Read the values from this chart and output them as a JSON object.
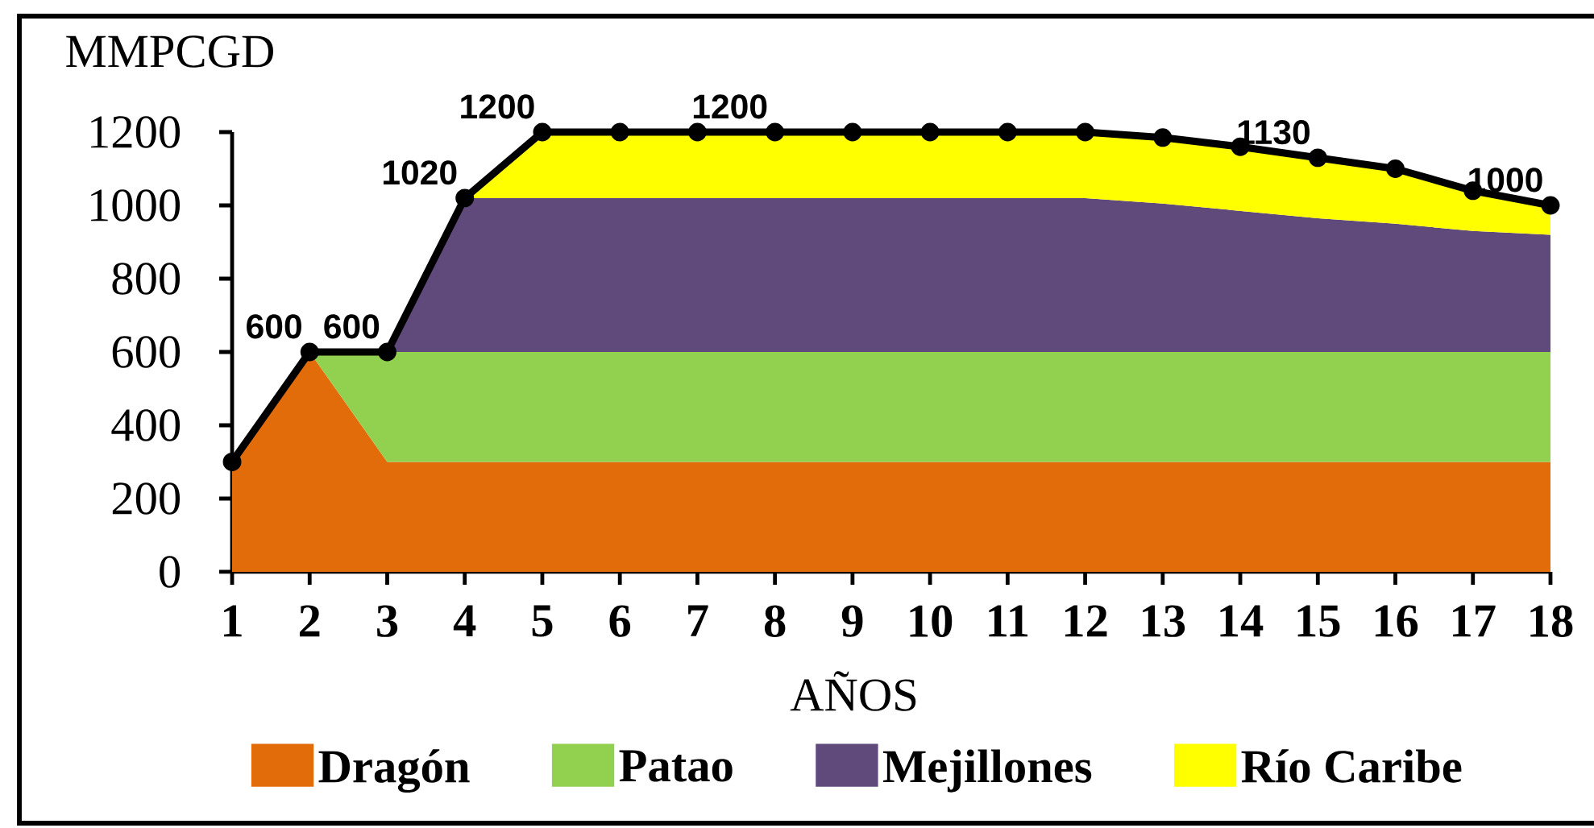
{
  "chart_data": {
    "type": "area",
    "stacked": true,
    "ylabel": "MMPCGD",
    "xlabel": "AÑOS",
    "x": [
      1,
      2,
      3,
      4,
      5,
      6,
      7,
      8,
      9,
      10,
      11,
      12,
      13,
      14,
      15,
      16,
      17,
      18
    ],
    "xlim": [
      1,
      18
    ],
    "xticks": [
      1,
      2,
      3,
      4,
      5,
      6,
      7,
      8,
      9,
      10,
      11,
      12,
      13,
      14,
      15,
      16,
      17,
      18
    ],
    "ylim": [
      0,
      1200
    ],
    "yticks": [
      0,
      200,
      400,
      600,
      800,
      1000,
      1200
    ],
    "legend": "bottom",
    "series": [
      {
        "name": "Dragón",
        "color": "#e36c0a",
        "values": [
          300,
          600,
          300,
          300,
          300,
          300,
          300,
          300,
          300,
          300,
          300,
          300,
          300,
          300,
          300,
          300,
          300,
          300
        ]
      },
      {
        "name": "Patao",
        "color": "#92d050",
        "values": [
          null,
          0,
          300,
          300,
          300,
          300,
          300,
          300,
          300,
          300,
          300,
          300,
          300,
          300,
          300,
          300,
          300,
          300
        ]
      },
      {
        "name": "Mejillones",
        "color": "#604a7b",
        "values": [
          null,
          null,
          0,
          420,
          420,
          420,
          420,
          420,
          420,
          420,
          420,
          420,
          405,
          385,
          365,
          350,
          330,
          320
        ]
      },
      {
        "name": "Río Caribe",
        "color": "#ffff00",
        "values": [
          null,
          null,
          null,
          0,
          180,
          180,
          180,
          180,
          180,
          180,
          180,
          180,
          180,
          175,
          165,
          150,
          110,
          80
        ]
      },
      {
        "type": "line",
        "color": "#000000",
        "marker": "circle",
        "values": [
          300,
          600,
          600,
          1020,
          1200,
          1200,
          1200,
          1200,
          1200,
          1200,
          1200,
          1200,
          1185,
          1160,
          1130,
          1100,
          1040,
          1000
        ],
        "value_labels": [
          null,
          "600",
          "600",
          "1020",
          "1200",
          null,
          null,
          "1200",
          null,
          null,
          null,
          null,
          null,
          null,
          "1130",
          null,
          null,
          "1000"
        ]
      }
    ]
  }
}
